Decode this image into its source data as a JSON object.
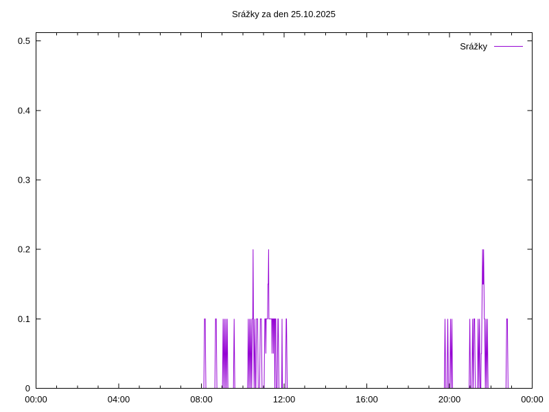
{
  "title": "Srážky za den 25.10.2025",
  "legend": {
    "label": "Srážky"
  },
  "colors": {
    "line": "#9400d3",
    "axis": "#000000",
    "background": "#ffffff",
    "text": "#000000"
  },
  "chart_data": {
    "type": "line",
    "title": "Srážky za den 25.10.2025",
    "xlabel": "",
    "ylabel": "",
    "grid": false,
    "legend_position": "top-right",
    "xlim_minutes": [
      0,
      1440
    ],
    "ylim": [
      0,
      0.512
    ],
    "x_tick_labels": [
      "00:00",
      "04:00",
      "08:00",
      "12:00",
      "16:00",
      "20:00",
      "00:00"
    ],
    "x_tick_hours": [
      0,
      4,
      8,
      12,
      16,
      20,
      24
    ],
    "x_minor_tick_every_hours": 1,
    "y_tick_labels": [
      "0",
      "0.1",
      "0.2",
      "0.3",
      "0.4",
      "0.5"
    ],
    "series": [
      {
        "name": "Srážky",
        "color": "#9400d3",
        "style": "line",
        "points": [
          [
            "00:00",
            0
          ],
          [
            "08:07",
            0
          ],
          [
            "08:08",
            0.05
          ],
          [
            "08:09",
            0.1
          ],
          [
            "08:11",
            0.1
          ],
          [
            "08:12",
            0.05
          ],
          [
            "08:13",
            0
          ],
          [
            "08:39",
            0
          ],
          [
            "08:40",
            0.05
          ],
          [
            "08:41",
            0.1
          ],
          [
            "08:43",
            0.1
          ],
          [
            "08:44",
            0.05
          ],
          [
            "08:45",
            0
          ],
          [
            "09:01",
            0
          ],
          [
            "09:02",
            0.05
          ],
          [
            "09:03",
            0.1
          ],
          [
            "09:04",
            0.05
          ],
          [
            "09:05",
            0
          ],
          [
            "09:06",
            0.05
          ],
          [
            "09:07",
            0.1
          ],
          [
            "09:08",
            0.05
          ],
          [
            "09:09",
            0
          ],
          [
            "09:10",
            0.05
          ],
          [
            "09:11",
            0.1
          ],
          [
            "09:12",
            0.05
          ],
          [
            "09:13",
            0
          ],
          [
            "09:14",
            0.05
          ],
          [
            "09:15",
            0.1
          ],
          [
            "09:16",
            0.05
          ],
          [
            "09:17",
            0
          ],
          [
            "09:33",
            0
          ],
          [
            "09:34",
            0.05
          ],
          [
            "09:35",
            0.1
          ],
          [
            "09:36",
            0.05
          ],
          [
            "09:37",
            0
          ],
          [
            "10:14",
            0
          ],
          [
            "10:15",
            0.05
          ],
          [
            "10:16",
            0.1
          ],
          [
            "10:17",
            0.05
          ],
          [
            "10:18",
            0
          ],
          [
            "10:19",
            0.05
          ],
          [
            "10:20",
            0.1
          ],
          [
            "10:21",
            0.05
          ],
          [
            "10:22",
            0
          ],
          [
            "10:23",
            0.05
          ],
          [
            "10:24",
            0.1
          ],
          [
            "10:25",
            0.05
          ],
          [
            "10:26",
            0
          ],
          [
            "10:27",
            0.05
          ],
          [
            "10:28",
            0.1
          ],
          [
            "10:29",
            0.1
          ],
          [
            "10:30",
            0.2
          ],
          [
            "10:31",
            0.1
          ],
          [
            "10:32",
            0.05
          ],
          [
            "10:33",
            0
          ],
          [
            "10:34",
            0.05
          ],
          [
            "10:35",
            0.1
          ],
          [
            "10:36",
            0.05
          ],
          [
            "10:37",
            0
          ],
          [
            "10:38",
            0
          ],
          [
            "10:39",
            0.05
          ],
          [
            "10:40",
            0.1
          ],
          [
            "10:43",
            0.1
          ],
          [
            "10:44",
            0.05
          ],
          [
            "10:45",
            0
          ],
          [
            "10:49",
            0
          ],
          [
            "10:50",
            0.05
          ],
          [
            "10:51",
            0.1
          ],
          [
            "10:54",
            0.1
          ],
          [
            "10:55",
            0.05
          ],
          [
            "10:56",
            0
          ],
          [
            "11:02",
            0
          ],
          [
            "11:03",
            0.05
          ],
          [
            "11:04",
            0.1
          ],
          [
            "11:06",
            0.1
          ],
          [
            "11:07",
            0.05
          ],
          [
            "11:08",
            0.1
          ],
          [
            "11:10",
            0.1
          ],
          [
            "11:12",
            0.1
          ],
          [
            "11:13",
            0.15
          ],
          [
            "11:14",
            0.15
          ],
          [
            "11:15",
            0.2
          ],
          [
            "11:16",
            0.1
          ],
          [
            "11:18",
            0.1
          ],
          [
            "11:20",
            0.1
          ],
          [
            "11:22",
            0.1
          ],
          [
            "11:24",
            0.1
          ],
          [
            "11:25",
            0.05
          ],
          [
            "11:26",
            0.1
          ],
          [
            "11:28",
            0.1
          ],
          [
            "11:29",
            0.05
          ],
          [
            "11:30",
            0.1
          ],
          [
            "11:32",
            0.1
          ],
          [
            "11:33",
            0
          ],
          [
            "11:34",
            0.1
          ],
          [
            "11:36",
            0.1
          ],
          [
            "11:37",
            0
          ],
          [
            "11:40",
            0
          ],
          [
            "11:41",
            0.05
          ],
          [
            "11:42",
            0.1
          ],
          [
            "11:43",
            0.1
          ],
          [
            "11:44",
            0.05
          ],
          [
            "11:45",
            0
          ],
          [
            "11:53",
            0
          ],
          [
            "11:54",
            0.1
          ],
          [
            "11:55",
            0
          ],
          [
            "12:04",
            0
          ],
          [
            "12:05",
            0.05
          ],
          [
            "12:06",
            0.1
          ],
          [
            "12:07",
            0.1
          ],
          [
            "12:08",
            0.05
          ],
          [
            "12:09",
            0
          ],
          [
            "19:45",
            0
          ],
          [
            "19:46",
            0.05
          ],
          [
            "19:47",
            0.1
          ],
          [
            "19:48",
            0.05
          ],
          [
            "19:49",
            0
          ],
          [
            "19:53",
            0
          ],
          [
            "19:54",
            0.05
          ],
          [
            "19:55",
            0.1
          ],
          [
            "19:56",
            0.05
          ],
          [
            "19:57",
            0
          ],
          [
            "20:01",
            0
          ],
          [
            "20:02",
            0.05
          ],
          [
            "20:03",
            0.1
          ],
          [
            "20:04",
            0.05
          ],
          [
            "20:05",
            0
          ],
          [
            "20:06",
            0.05
          ],
          [
            "20:07",
            0.1
          ],
          [
            "20:08",
            0.05
          ],
          [
            "20:09",
            0
          ],
          [
            "20:57",
            0
          ],
          [
            "20:58",
            0.05
          ],
          [
            "20:59",
            0.1
          ],
          [
            "21:00",
            0.05
          ],
          [
            "21:01",
            0
          ],
          [
            "21:05",
            0
          ],
          [
            "21:06",
            0.05
          ],
          [
            "21:07",
            0.1
          ],
          [
            "21:08",
            0.05
          ],
          [
            "21:09",
            0
          ],
          [
            "21:10",
            0.05
          ],
          [
            "21:11",
            0.1
          ],
          [
            "21:13",
            0.1
          ],
          [
            "21:14",
            0.05
          ],
          [
            "21:15",
            0
          ],
          [
            "21:21",
            0
          ],
          [
            "21:22",
            0.05
          ],
          [
            "21:23",
            0.1
          ],
          [
            "21:24",
            0.05
          ],
          [
            "21:25",
            0
          ],
          [
            "21:26",
            0.05
          ],
          [
            "21:27",
            0.1
          ],
          [
            "21:28",
            0.05
          ],
          [
            "21:29",
            0
          ],
          [
            "21:31",
            0
          ],
          [
            "21:32",
            0.05
          ],
          [
            "21:33",
            0.05
          ],
          [
            "21:34",
            0.1
          ],
          [
            "21:35",
            0.15
          ],
          [
            "21:36",
            0.2
          ],
          [
            "21:37",
            0.15
          ],
          [
            "21:38",
            0.15
          ],
          [
            "21:39",
            0.2
          ],
          [
            "21:40",
            0.15
          ],
          [
            "21:41",
            0.1
          ],
          [
            "21:42",
            0.1
          ],
          [
            "21:43",
            0.05
          ],
          [
            "21:44",
            0
          ],
          [
            "21:45",
            0.05
          ],
          [
            "21:46",
            0.1
          ],
          [
            "21:47",
            0.05
          ],
          [
            "21:48",
            0
          ],
          [
            "21:49",
            0.05
          ],
          [
            "21:50",
            0.1
          ],
          [
            "21:51",
            0.05
          ],
          [
            "21:52",
            0
          ],
          [
            "22:44",
            0
          ],
          [
            "22:45",
            0.05
          ],
          [
            "22:46",
            0.1
          ],
          [
            "22:48",
            0.1
          ],
          [
            "22:49",
            0.05
          ],
          [
            "22:50",
            0
          ],
          [
            "24:00",
            0
          ]
        ]
      }
    ]
  }
}
